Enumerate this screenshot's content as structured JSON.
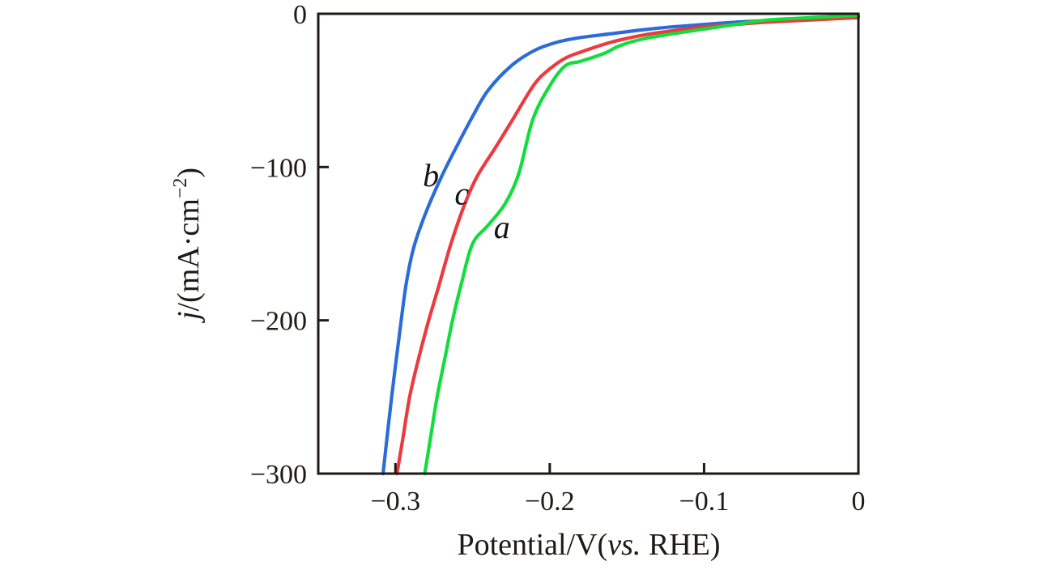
{
  "figure": {
    "background": "#ffffff",
    "axis_color": "#1f1a17",
    "text_color": "#1f1a17"
  },
  "chart_data": {
    "type": "line",
    "title": "",
    "xlabel_text": "Potential/V(vs. RHE)",
    "ylabel_text": "j/(mA·cm⁻²)",
    "xlabel_parts": {
      "pre": "Potential/V(",
      "italic": "vs.",
      "post": " RHE)"
    },
    "ylabel_parts": {
      "italic": "j",
      "pre": "/(mA·cm",
      "sup": "−2",
      "post": ")"
    },
    "xlim": [
      -0.35,
      0
    ],
    "ylim": [
      -300,
      0
    ],
    "grid": false,
    "legend": "none (curves labeled inline a, b, c)",
    "x_ticks": [
      {
        "value": -0.3,
        "label": "−0.3"
      },
      {
        "value": -0.2,
        "label": "−0.2"
      },
      {
        "value": -0.1,
        "label": "−0.1"
      },
      {
        "value": 0,
        "label": "0"
      }
    ],
    "y_ticks": [
      {
        "value": 0,
        "label": "0"
      },
      {
        "value": -100,
        "label": "−100"
      },
      {
        "value": -200,
        "label": "−200"
      },
      {
        "value": -300,
        "label": "−300"
      }
    ],
    "series": [
      {
        "id": "b",
        "name": "b",
        "color": "#2b6cd8",
        "points": [
          [
            0,
            -1.5
          ],
          [
            -0.02,
            -2.5
          ],
          [
            -0.04,
            -3.5
          ],
          [
            -0.06,
            -4.5
          ],
          [
            -0.08,
            -5.5
          ],
          [
            -0.1,
            -7
          ],
          [
            -0.12,
            -8.5
          ],
          [
            -0.14,
            -10.5
          ],
          [
            -0.16,
            -13
          ],
          [
            -0.18,
            -15.5
          ],
          [
            -0.195,
            -18.5
          ],
          [
            -0.21,
            -24
          ],
          [
            -0.225,
            -34
          ],
          [
            -0.24,
            -50
          ],
          [
            -0.25,
            -67
          ],
          [
            -0.26,
            -86
          ],
          [
            -0.27,
            -106
          ],
          [
            -0.28,
            -129
          ],
          [
            -0.288,
            -152
          ],
          [
            -0.293,
            -176
          ],
          [
            -0.297,
            -206
          ],
          [
            -0.301,
            -238
          ],
          [
            -0.3045,
            -268
          ],
          [
            -0.308,
            -300
          ]
        ]
      },
      {
        "id": "c",
        "name": "c",
        "color": "#ec3a3e",
        "points": [
          [
            0,
            -2.5
          ],
          [
            -0.02,
            -3.5
          ],
          [
            -0.04,
            -4.5
          ],
          [
            -0.06,
            -5.5
          ],
          [
            -0.08,
            -7
          ],
          [
            -0.1,
            -8.5
          ],
          [
            -0.12,
            -11
          ],
          [
            -0.14,
            -14
          ],
          [
            -0.16,
            -18.5
          ],
          [
            -0.18,
            -25
          ],
          [
            -0.19,
            -29
          ],
          [
            -0.2,
            -36
          ],
          [
            -0.21,
            -46
          ],
          [
            -0.224,
            -69
          ],
          [
            -0.235,
            -87
          ],
          [
            -0.247,
            -106
          ],
          [
            -0.255,
            -124
          ],
          [
            -0.264,
            -150
          ],
          [
            -0.272,
            -178
          ],
          [
            -0.279,
            -202
          ],
          [
            -0.286,
            -229
          ],
          [
            -0.291,
            -251
          ],
          [
            -0.295,
            -276
          ],
          [
            -0.299,
            -300
          ]
        ]
      },
      {
        "id": "a",
        "name": "a",
        "color": "#12dd3c",
        "points": [
          [
            0,
            -1
          ],
          [
            -0.02,
            -2
          ],
          [
            -0.04,
            -3
          ],
          [
            -0.06,
            -4.2
          ],
          [
            -0.08,
            -7
          ],
          [
            -0.1,
            -10
          ],
          [
            -0.12,
            -13
          ],
          [
            -0.14,
            -16.5
          ],
          [
            -0.155,
            -21
          ],
          [
            -0.165,
            -26
          ],
          [
            -0.18,
            -31
          ],
          [
            -0.19,
            -34
          ],
          [
            -0.2,
            -47
          ],
          [
            -0.211,
            -69
          ],
          [
            -0.22,
            -104
          ],
          [
            -0.229,
            -124
          ],
          [
            -0.24,
            -138
          ],
          [
            -0.25,
            -150
          ],
          [
            -0.257,
            -175
          ],
          [
            -0.263,
            -200
          ],
          [
            -0.268,
            -225
          ],
          [
            -0.273,
            -250
          ],
          [
            -0.277,
            -275
          ],
          [
            -0.281,
            -300
          ]
        ]
      }
    ],
    "curve_labels": [
      {
        "text": "b",
        "x": -0.277,
        "y": -105
      },
      {
        "text": "c",
        "x": -0.257,
        "y": -117
      },
      {
        "text": "a",
        "x": -0.231,
        "y": -139
      }
    ]
  }
}
